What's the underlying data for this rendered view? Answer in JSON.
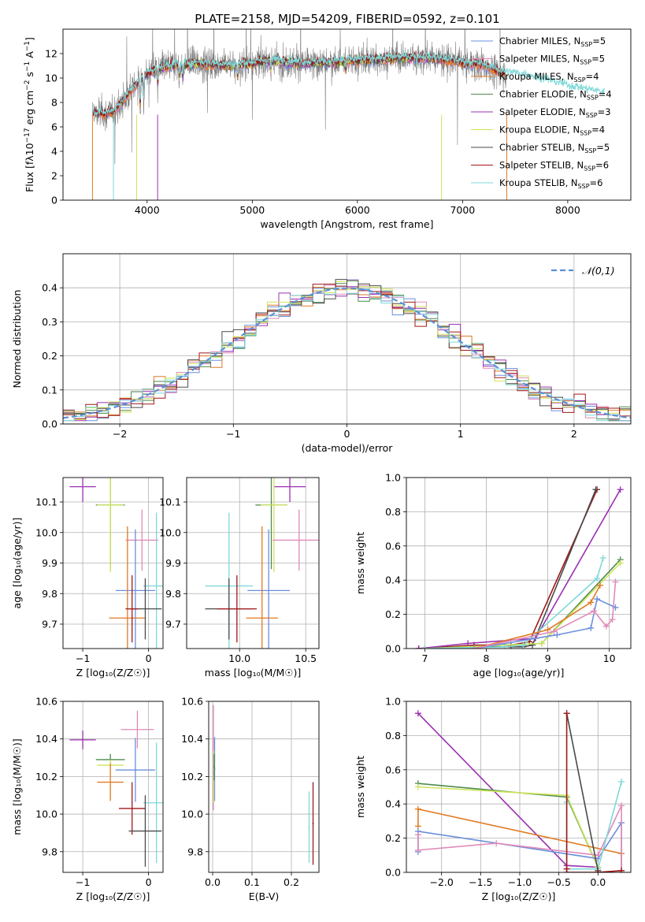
{
  "figure": {
    "title": "PLATE=2158, MJD=54209, FIBERID=0592, z=0.101"
  },
  "colors": {
    "chabrier_miles": "#6a8fdc",
    "salpeter_miles": "#e08ab8",
    "kroupa_miles": "#e07a22",
    "chabrier_elodie": "#4f8a4f",
    "salpeter_elodie": "#9a30b0",
    "kroupa_elodie": "#cde45a",
    "chabrier_stelib": "#4a4a4a",
    "salpeter_stelib": "#a01818",
    "kroupa_stelib": "#7fd8d8",
    "data": "#808080",
    "normal": "#5b8fd6",
    "grid": "#b0b0b0"
  },
  "chart_data": [
    {
      "id": "spectrum",
      "type": "line",
      "xlabel": "wavelength [Angstrom, rest frame]",
      "ylabel": "Flux [f",
      "ylabel_full": "Flux [fλ10⁻¹⁷ erg cm⁻² s⁻¹ A⁻¹]",
      "xlim": [
        3200,
        8600
      ],
      "ylim": [
        0,
        14
      ],
      "xticks": [
        4000,
        5000,
        6000,
        7000,
        8000
      ],
      "yticks": [
        0,
        2,
        4,
        6,
        8,
        10,
        12
      ],
      "legend": [
        {
          "key": "chabrier_miles",
          "label": "Chabrier MILES, N",
          "sub": "SSP",
          "suffix": "=5"
        },
        {
          "key": "salpeter_miles",
          "label": "Salpeter MILES, N",
          "sub": "SSP",
          "suffix": "=5"
        },
        {
          "key": "kroupa_miles",
          "label": "Kroupa MILES, N",
          "sub": "SSP",
          "suffix": "=4"
        },
        {
          "key": "chabrier_elodie",
          "label": "Chabrier ELODIE, N",
          "sub": "SSP",
          "suffix": "=4"
        },
        {
          "key": "salpeter_elodie",
          "label": "Salpeter ELODIE, N",
          "sub": "SSP",
          "suffix": "=3"
        },
        {
          "key": "kroupa_elodie",
          "label": "Kroupa ELODIE, N",
          "sub": "SSP",
          "suffix": "=4"
        },
        {
          "key": "chabrier_stelib",
          "label": "Chabrier STELIB, N",
          "sub": "SSP",
          "suffix": "=5"
        },
        {
          "key": "salpeter_stelib",
          "label": "Salpeter STELIB, N",
          "sub": "SSP",
          "suffix": "=6"
        },
        {
          "key": "kroupa_stelib",
          "label": "Kroupa STELIB, N",
          "sub": "SSP",
          "suffix": "=6"
        }
      ],
      "continuum_x": [
        3450,
        3600,
        3700,
        3900,
        4000,
        4200,
        4500,
        4800,
        5000,
        5200,
        5500,
        5800,
        6000,
        6300,
        6600,
        6900,
        7200,
        7400,
        7600,
        8000,
        8350
      ],
      "continuum_y": [
        7.2,
        7.0,
        7.4,
        9.5,
        10.4,
        11.0,
        11.2,
        11.0,
        11.2,
        11.4,
        11.2,
        11.3,
        11.4,
        11.6,
        11.7,
        11.4,
        11.0,
        10.4,
        10.2,
        9.3,
        8.7
      ]
    },
    {
      "id": "residuals",
      "type": "line",
      "xlabel": "(data-model)/error",
      "ylabel": "Normed distribution",
      "xlim": [
        -2.5,
        2.5
      ],
      "ylim": [
        0,
        0.5
      ],
      "xticks": [
        -2,
        -1,
        0,
        1,
        2
      ],
      "yticks": [
        0.0,
        0.1,
        0.2,
        0.3,
        0.4
      ],
      "legend": "𝒩(0,1)",
      "bin_width": 0.1
    },
    {
      "id": "age_vs_Z",
      "type": "scatter",
      "xlabel": "Z [log₁₀(Z/Z☉)]",
      "ylabel": "age  [log₁₀(age/yr)]",
      "xlim": [
        -1.3,
        0.22
      ],
      "ylim": [
        9.62,
        10.18
      ],
      "xticks": [
        -1,
        0
      ],
      "yticks": [
        9.7,
        9.8,
        9.9,
        10.0,
        10.1
      ],
      "points": [
        {
          "key": "salpeter_elodie",
          "x": -1.0,
          "xerr": 0.2,
          "y": 10.15,
          "yerr": 0.05
        },
        {
          "key": "chabrier_elodie",
          "x": -0.58,
          "xerr": 0.22,
          "y": 10.09,
          "yerr": 0.21
        },
        {
          "key": "kroupa_elodie",
          "x": -0.58,
          "xerr": 0.2,
          "y": 10.09,
          "yerr": 0.22
        },
        {
          "key": "salpeter_miles",
          "x": -0.1,
          "xerr": 0.25,
          "y": 9.975,
          "yerr": 0.1
        },
        {
          "key": "chabrier_miles",
          "x": -0.2,
          "xerr": 0.3,
          "y": 9.81,
          "yerr": 0.2
        },
        {
          "key": "kroupa_stelib",
          "x": 0.12,
          "xerr": 0.2,
          "y": 9.825,
          "yerr": 0.24
        },
        {
          "key": "kroupa_miles",
          "x": -0.32,
          "xerr": 0.28,
          "y": 9.72,
          "yerr": 0.3
        },
        {
          "key": "chabrier_stelib",
          "x": -0.05,
          "xerr": 0.25,
          "y": 9.75,
          "yerr": 0.1
        },
        {
          "key": "salpeter_stelib",
          "x": -0.25,
          "xerr": 0.1,
          "y": 9.75,
          "yerr": 0.11
        }
      ]
    },
    {
      "id": "age_vs_mass",
      "type": "scatter",
      "xlabel": "mass [log₁₀(M/M☉)]",
      "ylabel": "",
      "xlim": [
        9.6,
        10.6
      ],
      "ylim": [
        9.62,
        10.18
      ],
      "xticks": [
        10.0,
        10.5
      ],
      "yticks": [
        9.7,
        9.8,
        9.9,
        10.0,
        10.1
      ],
      "points": [
        {
          "key": "salpeter_elodie",
          "x": 10.38,
          "xerr": 0.12,
          "y": 10.15,
          "yerr": 0.05
        },
        {
          "key": "chabrier_elodie",
          "x": 10.24,
          "xerr": 0.12,
          "y": 10.09,
          "yerr": 0.21
        },
        {
          "key": "kroupa_elodie",
          "x": 10.26,
          "xerr": 0.1,
          "y": 10.09,
          "yerr": 0.22
        },
        {
          "key": "salpeter_miles",
          "x": 10.45,
          "xerr": 0.2,
          "y": 9.975,
          "yerr": 0.1
        },
        {
          "key": "chabrier_miles",
          "x": 10.22,
          "xerr": 0.16,
          "y": 9.81,
          "yerr": 0.2
        },
        {
          "key": "kroupa_stelib",
          "x": 9.92,
          "xerr": 0.18,
          "y": 9.825,
          "yerr": 0.24
        },
        {
          "key": "kroupa_miles",
          "x": 10.17,
          "xerr": 0.12,
          "y": 9.72,
          "yerr": 0.3
        },
        {
          "key": "chabrier_stelib",
          "x": 9.92,
          "xerr": 0.18,
          "y": 9.75,
          "yerr": 0.1
        },
        {
          "key": "salpeter_stelib",
          "x": 9.98,
          "xerr": 0.15,
          "y": 9.75,
          "yerr": 0.11
        }
      ]
    },
    {
      "id": "massweight_vs_age",
      "type": "line",
      "xlabel": "age  [log₁₀(age/yr)]",
      "ylabel": "mass weight",
      "xlim": [
        6.7,
        10.35
      ],
      "ylim": [
        0,
        1.0
      ],
      "xticks": [
        7,
        8,
        9,
        10
      ],
      "yticks": [
        0.0,
        0.2,
        0.4,
        0.6,
        0.8,
        1.0
      ],
      "series": [
        {
          "key": "salpeter_stelib",
          "x": [
            6.9,
            7.8,
            8.4,
            8.7,
            9.8
          ],
          "y": [
            0.0,
            0.02,
            0.02,
            0.04,
            0.93
          ]
        },
        {
          "key": "chabrier_stelib",
          "x": [
            6.9,
            7.8,
            8.6,
            8.75,
            9.78
          ],
          "y": [
            0.0,
            0.01,
            0.01,
            0.02,
            0.93
          ]
        },
        {
          "key": "salpeter_elodie",
          "x": [
            6.9,
            7.7,
            8.8,
            10.18
          ],
          "y": [
            0.0,
            0.03,
            0.06,
            0.93
          ]
        },
        {
          "key": "chabrier_elodie",
          "x": [
            7.0,
            8.9,
            10.18
          ],
          "y": [
            0.0,
            0.03,
            0.52
          ]
        },
        {
          "key": "kroupa_elodie",
          "x": [
            7.0,
            8.9,
            10.18
          ],
          "y": [
            0.0,
            0.03,
            0.5
          ]
        },
        {
          "key": "kroupa_stelib",
          "x": [
            7.0,
            8.3,
            8.6,
            9.8,
            9.9
          ],
          "y": [
            0.0,
            0.01,
            0.02,
            0.41,
            0.53
          ]
        },
        {
          "key": "kroupa_miles",
          "x": [
            7.8,
            9.0,
            9.7,
            9.85
          ],
          "y": [
            0.0,
            0.11,
            0.27,
            0.37
          ]
        },
        {
          "key": "chabrier_miles",
          "x": [
            7.8,
            9.15,
            9.7,
            9.8,
            10.1
          ],
          "y": [
            0.0,
            0.08,
            0.12,
            0.29,
            0.24
          ]
        },
        {
          "key": "salpeter_miles",
          "x": [
            7.8,
            9.1,
            9.75,
            9.95,
            10.05,
            10.1
          ],
          "y": [
            0.0,
            0.1,
            0.22,
            0.13,
            0.17,
            0.39
          ]
        }
      ]
    },
    {
      "id": "mass_vs_Z",
      "type": "scatter",
      "xlabel": "Z [log₁₀(Z/Z☉)]",
      "ylabel": "mass [log₁₀(M/M☉)]",
      "xlim": [
        -1.3,
        0.22
      ],
      "ylim": [
        9.69,
        10.6
      ],
      "xticks": [
        -1,
        0
      ],
      "yticks": [
        9.8,
        10.0,
        10.2,
        10.4,
        10.6
      ],
      "points": [
        {
          "key": "salpeter_elodie",
          "x": -1.0,
          "xerr": 0.2,
          "y": 10.395,
          "yerr": 0.05
        },
        {
          "key": "chabrier_elodie",
          "x": -0.58,
          "xerr": 0.22,
          "y": 10.29,
          "yerr": 0.03
        },
        {
          "key": "kroupa_elodie",
          "x": -0.58,
          "xerr": 0.2,
          "y": 10.26,
          "yerr": 0.03
        },
        {
          "key": "salpeter_miles",
          "x": -0.17,
          "xerr": 0.25,
          "y": 10.45,
          "yerr": 0.1
        },
        {
          "key": "chabrier_miles",
          "x": -0.2,
          "xerr": 0.3,
          "y": 10.235,
          "yerr": 0.17
        },
        {
          "key": "kroupa_miles",
          "x": -0.58,
          "xerr": 0.2,
          "y": 10.17,
          "yerr": 0.1
        },
        {
          "key": "kroupa_stelib",
          "x": 0.12,
          "xerr": 0.2,
          "y": 10.06,
          "yerr": 0.32
        },
        {
          "key": "salpeter_stelib",
          "x": -0.25,
          "xerr": 0.2,
          "y": 10.03,
          "yerr": 0.14
        },
        {
          "key": "chabrier_stelib",
          "x": -0.05,
          "xerr": 0.25,
          "y": 9.91,
          "yerr": 0.19
        }
      ]
    },
    {
      "id": "mass_vs_ebv",
      "type": "scatter",
      "xlabel": "E(B-V)",
      "ylabel": "",
      "xlim": [
        -0.01,
        0.27
      ],
      "ylim": [
        9.69,
        10.6
      ],
      "xticks": [
        0.0,
        0.1,
        0.2
      ],
      "yticks": [
        9.8,
        10.0,
        10.2,
        10.4,
        10.6
      ],
      "points": [
        {
          "key": "salpeter_miles",
          "x": 0.002,
          "xerr": 0.002,
          "y": 10.3,
          "yerr": 0.28
        },
        {
          "key": "chabrier_miles",
          "x": 0.005,
          "xerr": 0.002,
          "y": 10.24,
          "yerr": 0.17
        },
        {
          "key": "kroupa_elodie",
          "x": 0.003,
          "xerr": 0.002,
          "y": 10.2,
          "yerr": 0.14
        },
        {
          "key": "chabrier_elodie",
          "x": 0.004,
          "xerr": 0.002,
          "y": 10.25,
          "yerr": 0.07
        },
        {
          "key": "kroupa_stelib",
          "x": 0.245,
          "xerr": 0.002,
          "y": 9.93,
          "yerr": 0.19
        },
        {
          "key": "salpeter_stelib",
          "x": 0.255,
          "xerr": 0.002,
          "y": 9.95,
          "yerr": 0.22
        }
      ]
    },
    {
      "id": "massweight_vs_Z",
      "type": "line",
      "xlabel": "Z [log₁₀(Z/Z☉)]",
      "ylabel": "mass weight",
      "xlim": [
        -2.45,
        0.42
      ],
      "ylim": [
        0,
        1.0
      ],
      "xticks": [
        -2.0,
        -1.5,
        -1.0,
        -0.5,
        0.0
      ],
      "yticks": [
        0.0,
        0.2,
        0.4,
        0.6,
        0.8,
        1.0
      ],
      "series": [
        {
          "key": "salpeter_elodie",
          "x": [
            -2.3,
            -0.4,
            0.0
          ],
          "y": [
            0.93,
            0.04,
            0.03
          ]
        },
        {
          "key": "chabrier_elodie",
          "x": [
            -2.3,
            -0.4,
            0.0
          ],
          "y": [
            0.52,
            0.44,
            0.03
          ]
        },
        {
          "key": "kroupa_elodie",
          "x": [
            -2.3,
            -0.4,
            0.0
          ],
          "y": [
            0.5,
            0.45,
            0.03
          ]
        },
        {
          "key": "kroupa_miles",
          "x": [
            -2.3,
            -2.3,
            0.3,
            0.3
          ],
          "y": [
            0.27,
            0.37,
            0.11,
            0.0
          ]
        },
        {
          "key": "chabrier_miles",
          "x": [
            -2.3,
            -2.3,
            0.0,
            0.3,
            0.3
          ],
          "y": [
            0.12,
            0.24,
            0.08,
            0.29,
            0.01
          ]
        },
        {
          "key": "salpeter_miles",
          "x": [
            -2.3,
            -2.3,
            -1.3,
            0.0,
            0.3,
            0.3
          ],
          "y": [
            0.22,
            0.13,
            0.17,
            0.1,
            0.39,
            0.0
          ]
        },
        {
          "key": "kroupa_stelib",
          "x": [
            -0.4,
            -0.4,
            0.0,
            0.3
          ],
          "y": [
            0.41,
            0.02,
            0.02,
            0.53
          ]
        },
        {
          "key": "chabrier_stelib",
          "x": [
            -0.4,
            0.0,
            0.0
          ],
          "y": [
            0.93,
            0.01,
            0.0
          ]
        },
        {
          "key": "salpeter_stelib",
          "x": [
            -0.4,
            -0.4,
            -0.4,
            0.0,
            0.3
          ],
          "y": [
            0.93,
            0.02,
            0.0,
            0.0,
            0.01
          ]
        }
      ]
    }
  ]
}
